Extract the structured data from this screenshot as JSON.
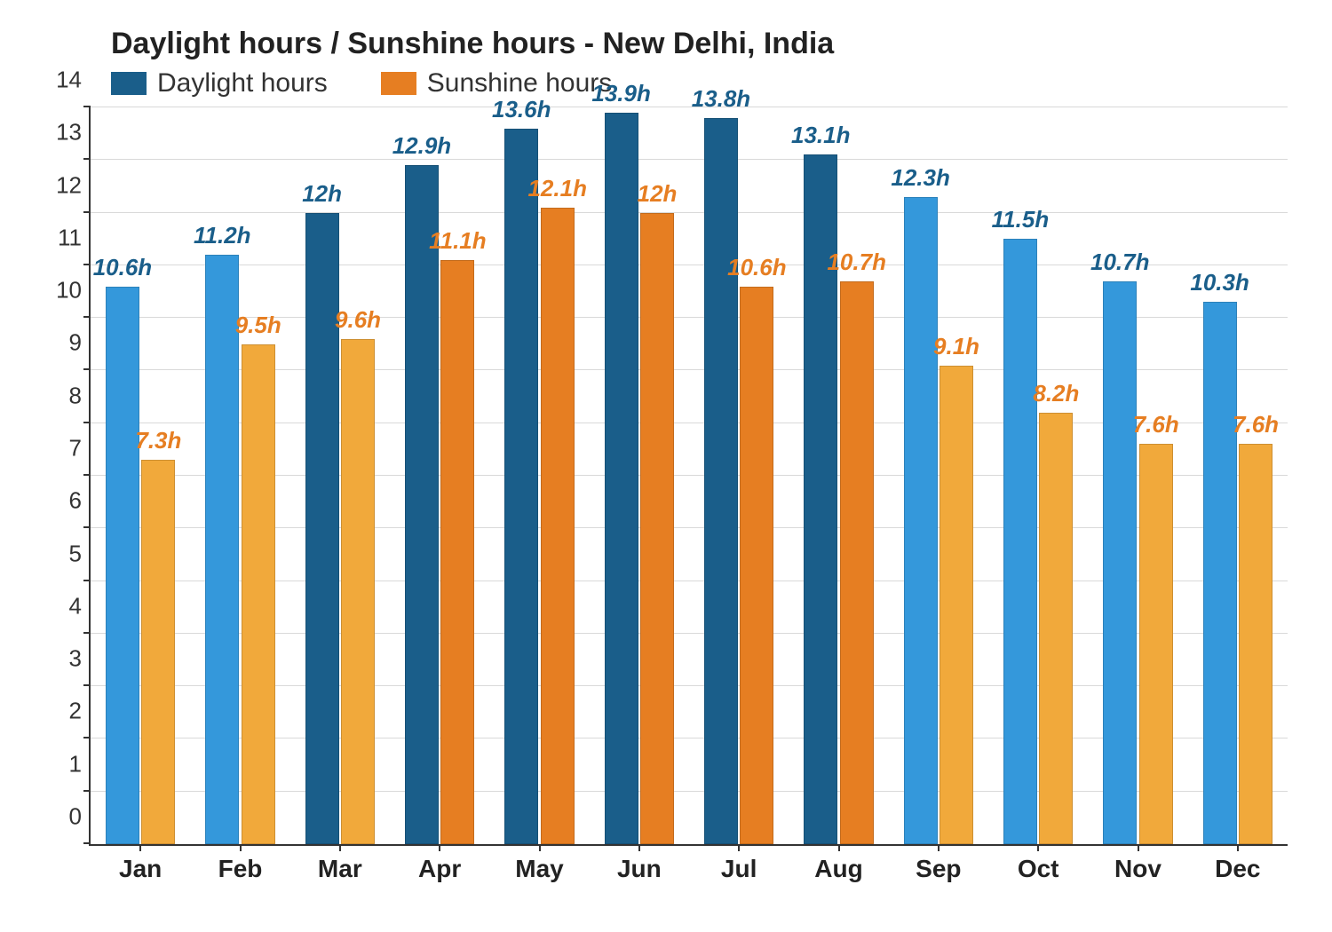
{
  "chart": {
    "type": "bar",
    "title": "Daylight hours / Sunshine hours - New Delhi, India",
    "title_fontsize": 34,
    "title_color": "#222222",
    "background_color": "#ffffff",
    "grid_color": "#d9d9d9",
    "axis_color": "#333333",
    "ylim": [
      0,
      14
    ],
    "ytick_step": 1,
    "xtick_fontsize": 28,
    "ytick_fontsize": 26,
    "bar_label_fontsize": 26,
    "bar_label_style": "italic bold",
    "legend_fontsize": 30,
    "categories": [
      "Jan",
      "Feb",
      "Mar",
      "Apr",
      "May",
      "Jun",
      "Jul",
      "Aug",
      "Sep",
      "Oct",
      "Nov",
      "Dec"
    ],
    "series": [
      {
        "name": "Daylight hours",
        "values": [
          10.6,
          11.2,
          12,
          12.9,
          13.6,
          13.9,
          13.8,
          13.1,
          12.3,
          11.5,
          10.7,
          10.3
        ],
        "labels": [
          "10.6h",
          "11.2h",
          "12h",
          "12.9h",
          "13.6h",
          "13.9h",
          "13.8h",
          "13.1h",
          "12.3h",
          "11.5h",
          "10.7h",
          "10.3h"
        ],
        "colors": [
          "#3498db",
          "#3498db",
          "#1a5e8a",
          "#1a5e8a",
          "#1a5e8a",
          "#1a5e8a",
          "#1a5e8a",
          "#1a5e8a",
          "#3498db",
          "#3498db",
          "#3498db",
          "#3498db"
        ],
        "label_color": "#1a5e8a",
        "legend_color": "#1a5e8a"
      },
      {
        "name": "Sunshine hours",
        "values": [
          7.3,
          9.5,
          9.6,
          11.1,
          12.1,
          12,
          10.6,
          10.7,
          9.1,
          8.2,
          7.6,
          7.6
        ],
        "labels": [
          "7.3h",
          "9.5h",
          "9.6h",
          "11.1h",
          "12.1h",
          "12h",
          "10.6h",
          "10.7h",
          "9.1h",
          "8.2h",
          "7.6h",
          "7.6h"
        ],
        "colors": [
          "#f1a93b",
          "#f1a93b",
          "#f1a93b",
          "#e67e22",
          "#e67e22",
          "#e67e22",
          "#e67e22",
          "#e67e22",
          "#f1a93b",
          "#f1a93b",
          "#f1a93b",
          "#f1a93b"
        ],
        "label_color": "#e67e22",
        "legend_color": "#e67e22"
      }
    ],
    "bar_group_width_ratio": 0.7,
    "bar_gap_ratio": 0.02
  }
}
